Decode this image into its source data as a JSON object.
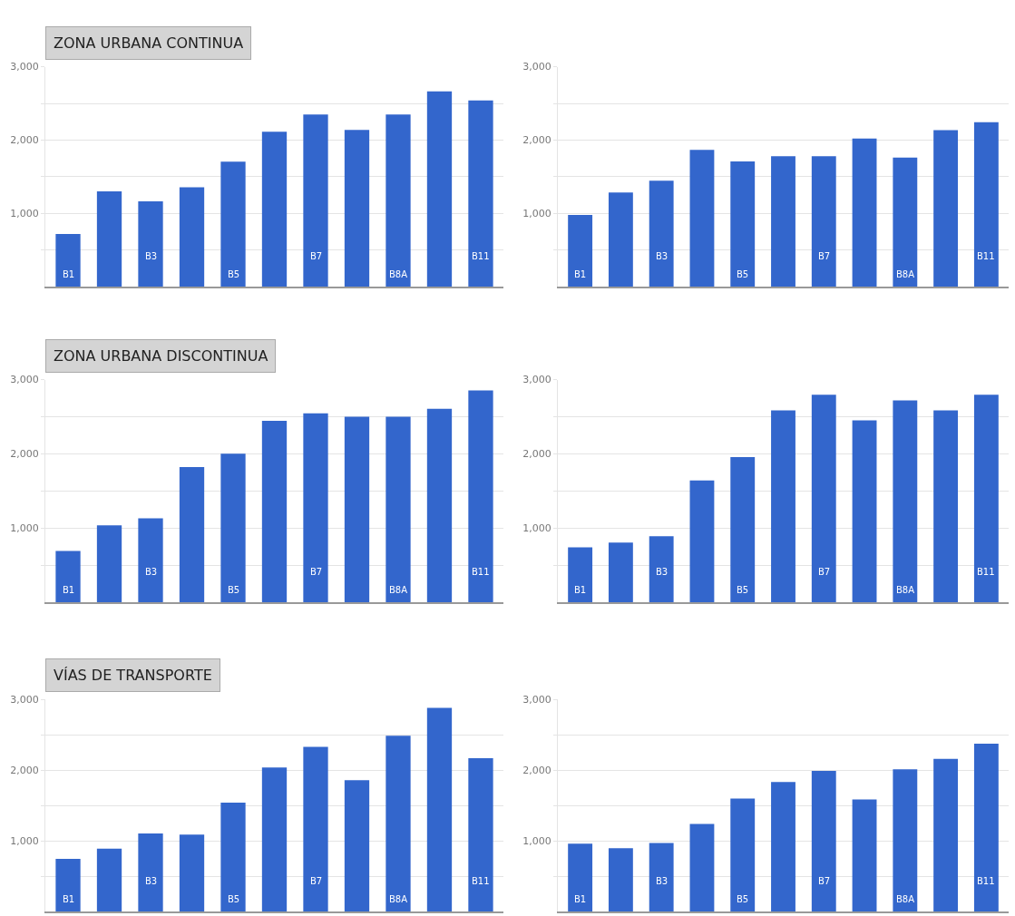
{
  "chart_data": [
    {
      "type": "bar",
      "title": "ZONA URBANA CONTINUA",
      "categories": [
        "B1",
        null,
        "B3",
        null,
        "B5",
        null,
        "B7",
        null,
        "B8A",
        null,
        "B11"
      ],
      "color": "#3366cc",
      "grid": "y",
      "ylim": [
        0,
        3000
      ],
      "yticks": [
        {
          "value": 500,
          "label": null
        },
        {
          "value": 1000,
          "label": "1,000"
        },
        {
          "value": 1500,
          "label": null
        },
        {
          "value": 2000,
          "label": "2,000"
        },
        {
          "value": 2500,
          "label": null
        },
        {
          "value": 3000,
          "label": "3,000"
        }
      ],
      "values": [
        720,
        1300,
        1165,
        1355,
        1705,
        2115,
        2350,
        2140,
        2350,
        2665,
        2540
      ]
    },
    {
      "type": "bar",
      "categories": [
        "B1",
        null,
        "B3",
        null,
        "B5",
        null,
        "B7",
        null,
        "B8A",
        null,
        "B11"
      ],
      "color": "#3366cc",
      "grid": "y",
      "ylim": [
        0,
        3000
      ],
      "yticks": [
        {
          "value": 500,
          "label": null
        },
        {
          "value": 1000,
          "label": "1,000"
        },
        {
          "value": 1500,
          "label": null
        },
        {
          "value": 2000,
          "label": "2,000"
        },
        {
          "value": 2500,
          "label": null
        },
        {
          "value": 3000,
          "label": "3,000"
        }
      ],
      "values": [
        980,
        1285,
        1445,
        1865,
        1710,
        1780,
        1780,
        2020,
        1760,
        2135,
        2245
      ]
    },
    {
      "type": "bar",
      "title": "ZONA URBANA DISCONTINUA",
      "categories": [
        "B1",
        null,
        "B3",
        null,
        "B5",
        null,
        "B7",
        null,
        "B8A",
        null,
        "B11"
      ],
      "color": "#3366cc",
      "grid": "y",
      "ylim": [
        0,
        3000
      ],
      "yticks": [
        {
          "value": 500,
          "label": null
        },
        {
          "value": 1000,
          "label": "1,000"
        },
        {
          "value": 1500,
          "label": null
        },
        {
          "value": 2000,
          "label": "2,000"
        },
        {
          "value": 2500,
          "label": null
        },
        {
          "value": 3000,
          "label": "3,000"
        }
      ],
      "values": [
        690,
        1035,
        1130,
        1820,
        2000,
        2445,
        2545,
        2500,
        2500,
        2605,
        2855
      ]
    },
    {
      "type": "bar",
      "categories": [
        "B1",
        null,
        "B3",
        null,
        "B5",
        null,
        "B7",
        null,
        "B8A",
        null,
        "B11"
      ],
      "color": "#3366cc",
      "grid": "y",
      "ylim": [
        0,
        3000
      ],
      "yticks": [
        {
          "value": 500,
          "label": null
        },
        {
          "value": 1000,
          "label": "1,000"
        },
        {
          "value": 1500,
          "label": null
        },
        {
          "value": 2000,
          "label": "2,000"
        },
        {
          "value": 2500,
          "label": null
        },
        {
          "value": 3000,
          "label": "3,000"
        }
      ],
      "values": [
        740,
        805,
        890,
        1640,
        1955,
        2585,
        2795,
        2450,
        2720,
        2585,
        2795
      ]
    },
    {
      "type": "bar",
      "title": "VÍAS DE TRANSPORTE",
      "categories": [
        "B1",
        null,
        "B3",
        null,
        "B5",
        null,
        "B7",
        null,
        "B8A",
        null,
        "B11"
      ],
      "color": "#3366cc",
      "grid": "y",
      "ylim": [
        0,
        3000
      ],
      "yticks": [
        {
          "value": 500,
          "label": null
        },
        {
          "value": 1000,
          "label": "1,000"
        },
        {
          "value": 1500,
          "label": null
        },
        {
          "value": 2000,
          "label": "2,000"
        },
        {
          "value": 2500,
          "label": null
        },
        {
          "value": 3000,
          "label": "3,000"
        }
      ],
      "values": [
        745,
        890,
        1105,
        1090,
        1540,
        2040,
        2330,
        1860,
        2490,
        2885,
        2170
      ]
    },
    {
      "type": "bar",
      "categories": [
        "B1",
        null,
        "B3",
        null,
        "B5",
        null,
        "B7",
        null,
        "B8A",
        null,
        "B11"
      ],
      "color": "#3366cc",
      "grid": "y",
      "ylim": [
        0,
        3000
      ],
      "yticks": [
        {
          "value": 500,
          "label": null
        },
        {
          "value": 1000,
          "label": "1,000"
        },
        {
          "value": 1500,
          "label": null
        },
        {
          "value": 2000,
          "label": "2,000"
        },
        {
          "value": 2500,
          "label": null
        },
        {
          "value": 3000,
          "label": "3,000"
        }
      ],
      "values": [
        960,
        895,
        970,
        1240,
        1600,
        1835,
        1990,
        1585,
        2015,
        2160,
        2375
      ]
    }
  ]
}
